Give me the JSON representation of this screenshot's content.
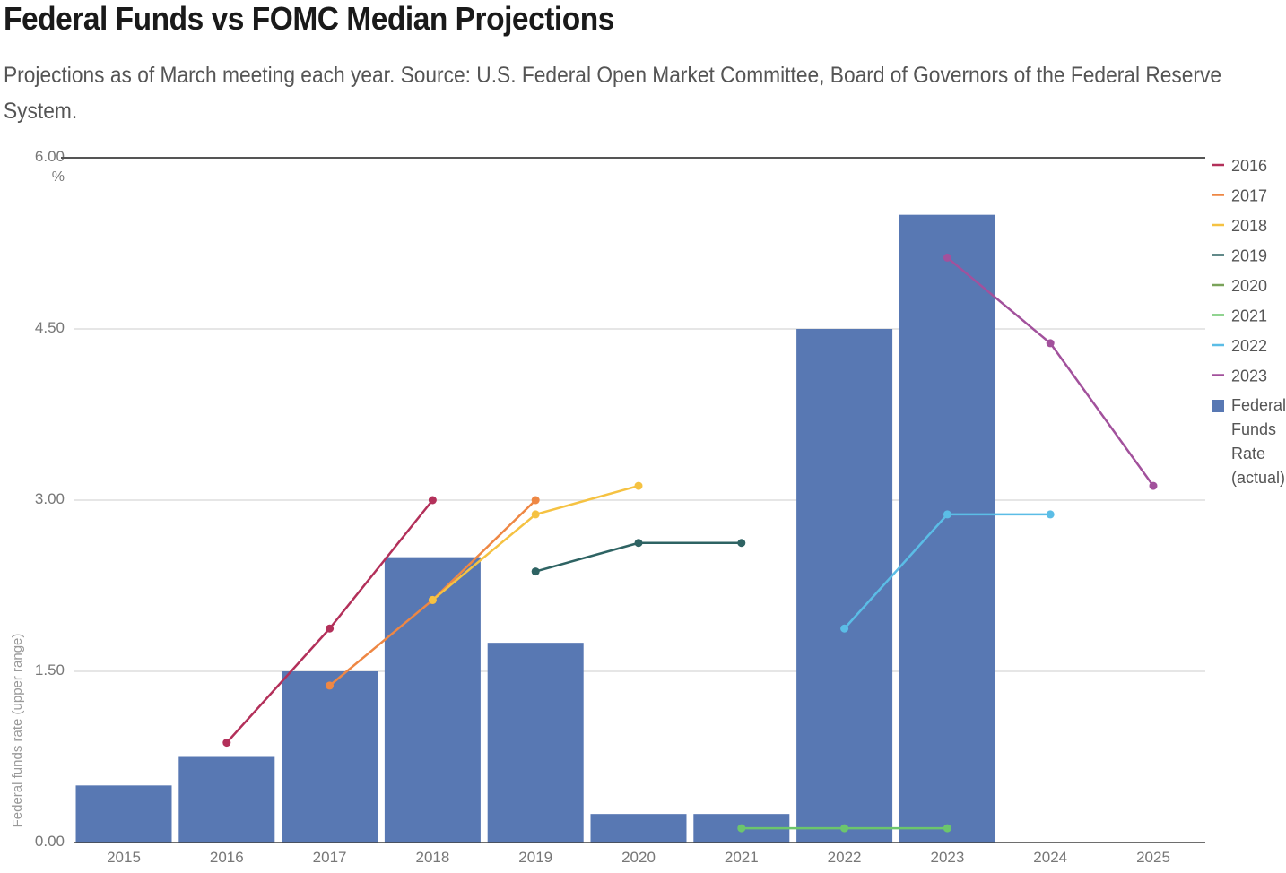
{
  "header": {
    "title": "Federal Funds vs FOMC Median Projections",
    "subtitle": "Projections as of March meeting each year. Source: U.S. Federal Open Market Committee, Board of Governors of the Federal Reserve System."
  },
  "chart_data": {
    "type": "bar",
    "categories": [
      "2015",
      "2016",
      "2017",
      "2018",
      "2019",
      "2020",
      "2021",
      "2022",
      "2023",
      "2024",
      "2025"
    ],
    "ylabel": "Federal funds rate (upper range)",
    "y_unit": "%",
    "ylim": [
      0,
      6
    ],
    "yticks": [
      "0.00",
      "1.50",
      "3.00",
      "4.50",
      "6.00"
    ],
    "grid": true,
    "legend_position": "right",
    "bar_series": {
      "name": "Federal Funds Rate (actual)",
      "color": "#5878b3",
      "values": [
        0.5,
        0.75,
        1.5,
        2.5,
        1.75,
        0.25,
        0.25,
        4.5,
        5.5,
        null,
        null
      ]
    },
    "line_series": [
      {
        "name": "2016",
        "color": "#b3305a",
        "points": [
          [
            "2016",
            0.875
          ],
          [
            "2017",
            1.875
          ],
          [
            "2018",
            3.0
          ]
        ]
      },
      {
        "name": "2017",
        "color": "#ee8744",
        "points": [
          [
            "2017",
            1.375
          ],
          [
            "2018",
            2.125
          ],
          [
            "2019",
            3.0
          ]
        ]
      },
      {
        "name": "2018",
        "color": "#f5c242",
        "points": [
          [
            "2018",
            2.125
          ],
          [
            "2019",
            2.875
          ],
          [
            "2020",
            3.125
          ]
        ]
      },
      {
        "name": "2019",
        "color": "#2e6363",
        "points": [
          [
            "2019",
            2.375
          ],
          [
            "2020",
            2.625
          ],
          [
            "2021",
            2.625
          ]
        ]
      },
      {
        "name": "2020",
        "color": "#7aa35a",
        "points": []
      },
      {
        "name": "2021",
        "color": "#6cc66c",
        "points": [
          [
            "2021",
            0.125
          ],
          [
            "2022",
            0.125
          ],
          [
            "2023",
            0.125
          ]
        ]
      },
      {
        "name": "2022",
        "color": "#5bbde6",
        "points": [
          [
            "2022",
            1.875
          ],
          [
            "2023",
            2.875
          ],
          [
            "2024",
            2.875
          ]
        ]
      },
      {
        "name": "2023",
        "color": "#a2519c",
        "points": [
          [
            "2023",
            5.125
          ],
          [
            "2024",
            4.375
          ],
          [
            "2025",
            3.125
          ]
        ]
      }
    ]
  }
}
